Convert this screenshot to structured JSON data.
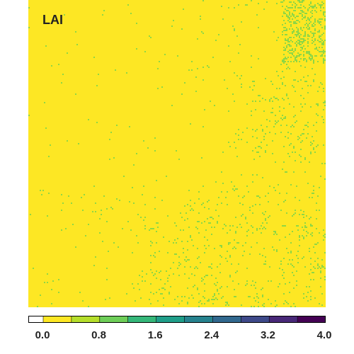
{
  "chart_data": {
    "type": "heatmap",
    "title": "LAI",
    "colorbar": {
      "min": 0.0,
      "max": 4.0,
      "step": 0.4,
      "tick_labels": [
        "0.0",
        "0.8",
        "1.6",
        "2.4",
        "3.2",
        "4.0"
      ],
      "tick_values": [
        0.0,
        0.8,
        1.6,
        2.4,
        3.2,
        4.0
      ],
      "class_colors": [
        "#ffffff",
        "#fde724",
        "#b5de2b",
        "#6ece58",
        "#35b779",
        "#1f9e89",
        "#26828e",
        "#31688e",
        "#3e4989",
        "#482878",
        "#440154"
      ]
    },
    "map": {
      "dominant_range": [
        0.0,
        0.4
      ],
      "dominant_color": "#fde724",
      "minor_range": [
        0.8,
        1.2
      ],
      "minor_color": "#8fd744"
    }
  }
}
